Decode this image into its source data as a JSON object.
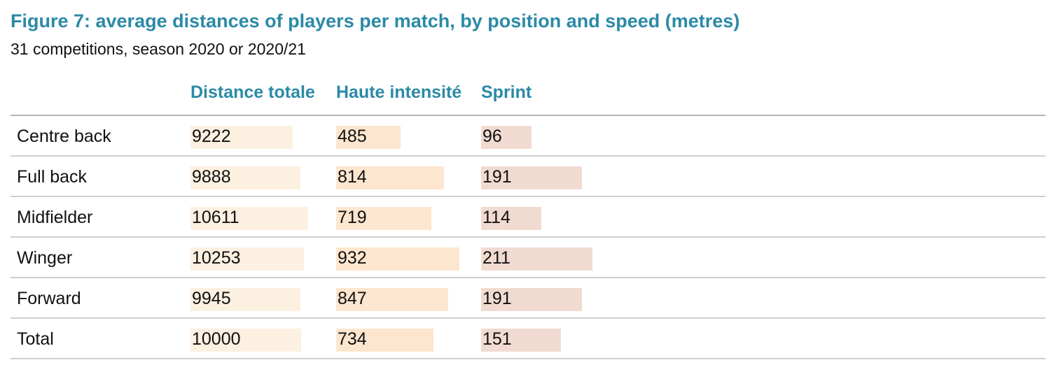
{
  "title": "Figure 7: average distances of players per match, by position and speed (metres)",
  "subtitle": "31 competitions, season 2020 or 2020/21",
  "colors": {
    "title": "#2b8aa6",
    "distance_bar": "#fcf0e1",
    "intensity_bar": "#fde6cf",
    "sprint_bar": "#f1dbd0",
    "rule": "#cfcfcf"
  },
  "chart_data": {
    "type": "table",
    "title": "Figure 7: average distances of players per match, by position and speed (metres)",
    "subtitle": "31 competitions, season 2020 or 2020/21",
    "columns": [
      "Distance totale",
      "Haute intensité",
      "Sprint"
    ],
    "rows": [
      {
        "label": "Centre back",
        "values": [
          9222,
          485,
          96
        ]
      },
      {
        "label": "Full back",
        "values": [
          9888,
          814,
          191
        ]
      },
      {
        "label": "Midfielder",
        "values": [
          10611,
          719,
          114
        ]
      },
      {
        "label": "Winger",
        "values": [
          10253,
          932,
          211
        ]
      },
      {
        "label": "Forward",
        "values": [
          9945,
          847,
          191
        ]
      },
      {
        "label": "Total",
        "values": [
          10000,
          734,
          151
        ]
      }
    ]
  }
}
